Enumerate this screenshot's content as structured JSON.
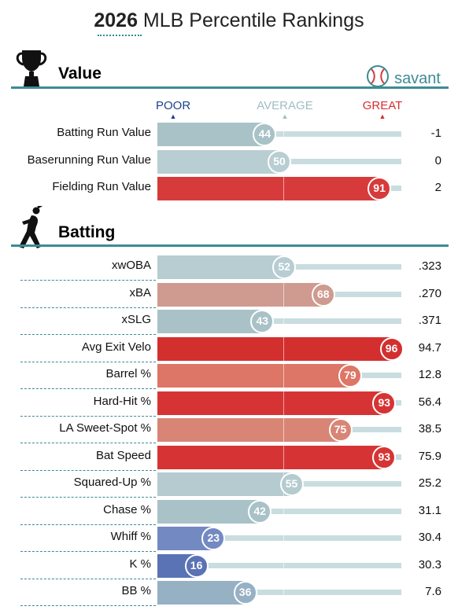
{
  "page": {
    "title_year": "2026",
    "title_rest": " MLB Percentile Rankings"
  },
  "brand": {
    "label": "savant",
    "accent": "#3d8b95"
  },
  "scale": {
    "poor": "POOR",
    "average": "AVERAGE",
    "great": "GREAT"
  },
  "sections": {
    "value": {
      "title": "Value",
      "rows": [
        {
          "label": "Batting Run Value",
          "percentile": 44,
          "value": "-1",
          "color": "#a9c2c7"
        },
        {
          "label": "Baserunning Run Value",
          "percentile": 50,
          "value": "0",
          "color": "#b9ced2"
        },
        {
          "label": "Fielding Run Value",
          "percentile": 91,
          "value": "2",
          "color": "#d73a3a"
        }
      ]
    },
    "batting": {
      "title": "Batting",
      "rows": [
        {
          "label": "xwOBA",
          "percentile": 52,
          "value": ".323",
          "color": "#b7cdd1"
        },
        {
          "label": "xBA",
          "percentile": 68,
          "value": ".270",
          "color": "#cf9a90"
        },
        {
          "label": "xSLG",
          "percentile": 43,
          "value": ".371",
          "color": "#a9c2c7"
        },
        {
          "label": "Avg Exit Velo",
          "percentile": 96,
          "value": "94.7",
          "color": "#d32f2f"
        },
        {
          "label": "Barrel %",
          "percentile": 79,
          "value": "12.8",
          "color": "#dd7666"
        },
        {
          "label": "Hard-Hit %",
          "percentile": 93,
          "value": "56.4",
          "color": "#d63434"
        },
        {
          "label": "LA Sweet-Spot %",
          "percentile": 75,
          "value": "38.5",
          "color": "#d98576"
        },
        {
          "label": "Bat Speed",
          "percentile": 93,
          "value": "75.9",
          "color": "#d63434"
        },
        {
          "label": "Squared-Up %",
          "percentile": 55,
          "value": "25.2",
          "color": "#b5cbcf"
        },
        {
          "label": "Chase %",
          "percentile": 42,
          "value": "31.1",
          "color": "#a9c2c7"
        },
        {
          "label": "Whiff %",
          "percentile": 23,
          "value": "30.4",
          "color": "#7389c2"
        },
        {
          "label": "K %",
          "percentile": 16,
          "value": "30.3",
          "color": "#5a73b4"
        },
        {
          "label": "BB %",
          "percentile": 36,
          "value": "7.6",
          "color": "#96b0c4"
        }
      ]
    }
  }
}
